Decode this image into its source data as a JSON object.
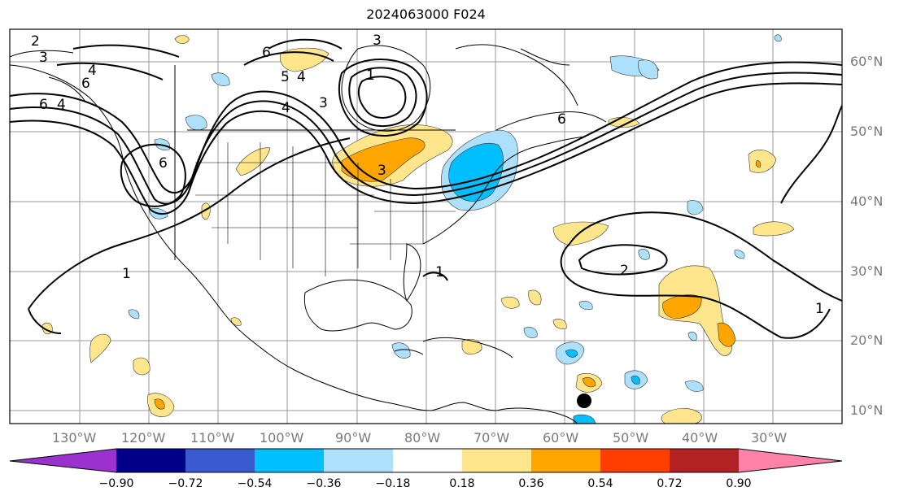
{
  "title": "2024063000 F024",
  "lat_labels": [
    "60°N",
    "50°N",
    "40°N",
    "30°N",
    "20°N",
    "10°N"
  ],
  "lon_labels": [
    "130°W",
    "120°W",
    "110°W",
    "100°W",
    "90°W",
    "80°W",
    "70°W",
    "60°W",
    "50°W",
    "40°W",
    "30°W"
  ],
  "colorbar": {
    "ticks": [
      "−0.90",
      "−0.72",
      "−0.54",
      "−0.36",
      "−0.18",
      "0.18",
      "0.36",
      "0.54",
      "0.72",
      "0.90"
    ],
    "colors": [
      "#9b32d0",
      "#00008b",
      "#3a5bd0",
      "#00bfff",
      "#ade1fb",
      "#ffffff",
      "#ffe68c",
      "#ffa500",
      "#ff3e00",
      "#b22222",
      "#ff82a8"
    ]
  },
  "contour_labels": [
    "2",
    "3",
    "4",
    "6",
    "6",
    "4",
    "6",
    "6",
    "5",
    "4",
    "3",
    "4",
    "1",
    "3",
    "3",
    "6",
    "1",
    "1",
    "2",
    "1"
  ],
  "fill_colors": {
    "light_blue": "#ade1fb",
    "blue": "#00bfff",
    "light_yellow": "#ffe68c",
    "orange": "#ffa500"
  },
  "marker": "storm-position-dot"
}
